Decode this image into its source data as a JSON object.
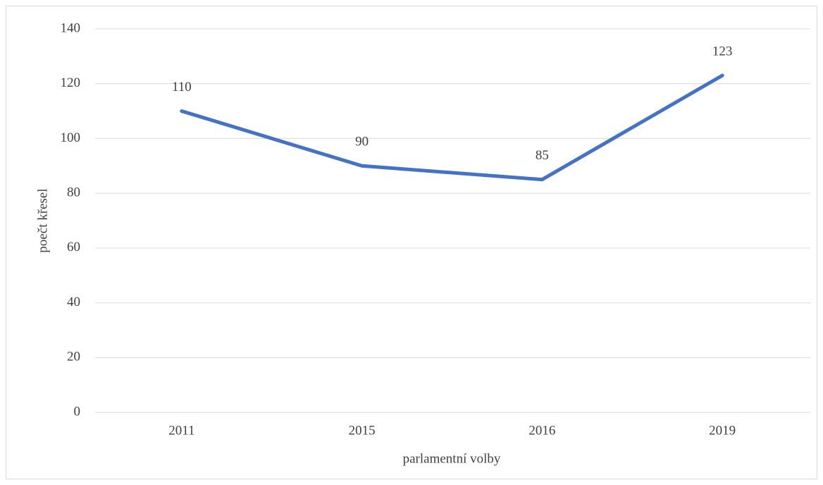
{
  "chart_data": {
    "type": "line",
    "categories": [
      "2011",
      "2015",
      "2016",
      "2019"
    ],
    "series": [
      {
        "name": null,
        "color": "#4472c4",
        "values": [
          110,
          90,
          85,
          123
        ]
      }
    ],
    "data_labels": true,
    "ylim": [
      0,
      140
    ],
    "yticks": [
      0,
      20,
      40,
      60,
      80,
      100,
      120,
      140
    ],
    "grid": true,
    "y_label": "poečt křesel",
    "x_label": "parlamentní volby"
  }
}
